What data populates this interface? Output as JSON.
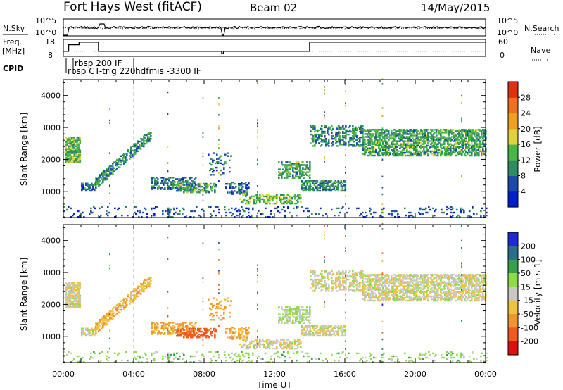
{
  "chart_data": {
    "type": "heatmap",
    "header": {
      "station": "Fort Hays West (fitACF)",
      "beam": "Beam 02",
      "date": "14/May/2015"
    },
    "panels": {
      "noise": {
        "left_label": "N.Sky",
        "left_ticks": [
          "10^5",
          "10^0"
        ],
        "right_label": "N.Search",
        "right_ticks": [
          "10^5",
          "10^0"
        ]
      },
      "freq": {
        "left_label": "Freq.",
        "left_unit": "[MHz]",
        "left_ticks": [
          "18",
          "8"
        ],
        "right_label": "Nave",
        "right_ticks": [
          "60",
          "0"
        ],
        "freq_steps": [
          {
            "t": [
              0.0,
              0.3
            ],
            "v": 10
          },
          {
            "t": [
              0.3,
              0.9
            ],
            "v": 15
          },
          {
            "t": [
              0.9,
              2.0
            ],
            "v": 17
          },
          {
            "t": [
              2.0,
              9.0
            ],
            "v": 10
          },
          {
            "t": [
              9.0,
              9.1
            ],
            "v": 8
          },
          {
            "t": [
              9.1,
              14.0
            ],
            "v": 10
          },
          {
            "t": [
              14.0,
              24.0
            ],
            "v": 17
          }
        ],
        "nave_level": 20
      },
      "cpid": {
        "label": "CPID",
        "modes": [
          "rbsp 200 IF",
          "rbsp CT-trig 220",
          "hdfmis -3300 IF"
        ]
      }
    },
    "x_axis": {
      "label": "Time UT",
      "range_hours": [
        0,
        24
      ],
      "tick_labels": [
        "00:00",
        "04:00",
        "08:00",
        "12:00",
        "16:00",
        "20:00",
        "00:00"
      ]
    },
    "y_axis": {
      "label": "Slant Range [km]",
      "range_km": [
        180,
        4500
      ],
      "tick_labels": [
        "1000",
        "2000",
        "3000",
        "4000"
      ],
      "tick_values": [
        1000,
        2000,
        3000,
        4000
      ]
    },
    "power": {
      "colorbar_label": "Power [dB]",
      "colorbar_ticks": [
        "4",
        "8",
        "12",
        "16",
        "20",
        "24",
        "28"
      ],
      "colors": [
        "#0020d0",
        "#1c4aa6",
        "#2f8c62",
        "#4ab645",
        "#e0d23c",
        "#f0a020",
        "#f07020",
        "#e03010"
      ]
    },
    "velocity": {
      "colorbar_label": "Velocity [m s-1]",
      "colorbar_ticks": [
        "200",
        "100",
        "50",
        "15",
        "-15",
        "-50",
        "-100",
        "-200"
      ],
      "colors": [
        "#1e2ad2",
        "#2a6e8a",
        "#36a050",
        "#8edc48",
        "#c8c8c4",
        "#f0c040",
        "#f09630",
        "#f05a20",
        "#e01010"
      ]
    },
    "echo_regions": [
      {
        "t0": 0.1,
        "t1": 0.9,
        "r0": 1900,
        "r1": 2700,
        "p": 14,
        "v": -5,
        "den": 0.8
      },
      {
        "t0": 1.0,
        "t1": 1.8,
        "r0": 1000,
        "r1": 1250,
        "p": 8,
        "v": -5,
        "den": 0.7
      },
      {
        "t0": 1.8,
        "t1": 5.0,
        "r0": 1250,
        "r1": 2800,
        "slope": true,
        "p": 10,
        "v": -40,
        "den": 0.6
      },
      {
        "t0": 5.0,
        "t1": 7.5,
        "r0": 1050,
        "r1": 1450,
        "p": 8,
        "v": -60,
        "den": 0.5
      },
      {
        "t0": 6.4,
        "t1": 8.7,
        "r0": 950,
        "r1": 1250,
        "p": 12,
        "v": -120,
        "den": 0.55
      },
      {
        "t0": 8.2,
        "t1": 9.5,
        "r0": 1500,
        "r1": 2200,
        "p": 8,
        "v": -60,
        "den": 0.15
      },
      {
        "t0": 9.2,
        "t1": 10.5,
        "r0": 900,
        "r1": 1300,
        "p": 6,
        "v": -60,
        "den": 0.35
      },
      {
        "t0": 10.0,
        "t1": 13.5,
        "r0": 600,
        "r1": 900,
        "p": 14,
        "v": -5,
        "den": 0.55
      },
      {
        "t0": 12.2,
        "t1": 14.0,
        "r0": 1400,
        "r1": 1900,
        "p": 12,
        "v": 20,
        "den": 0.55
      },
      {
        "t0": 13.5,
        "t1": 16.0,
        "r0": 1000,
        "r1": 1350,
        "p": 10,
        "v": -5,
        "den": 0.6
      },
      {
        "t0": 14.0,
        "t1": 17.0,
        "r0": 2400,
        "r1": 3050,
        "p": 10,
        "v": -5,
        "den": 0.45
      },
      {
        "t0": 17.0,
        "t1": 24.0,
        "r0": 2100,
        "r1": 2950,
        "p": 12,
        "v": -5,
        "den": 0.65
      },
      {
        "t0": 0.0,
        "t1": 24.0,
        "r0": 180,
        "r1": 500,
        "p": 6,
        "v": 30,
        "den": 0.12
      }
    ]
  }
}
